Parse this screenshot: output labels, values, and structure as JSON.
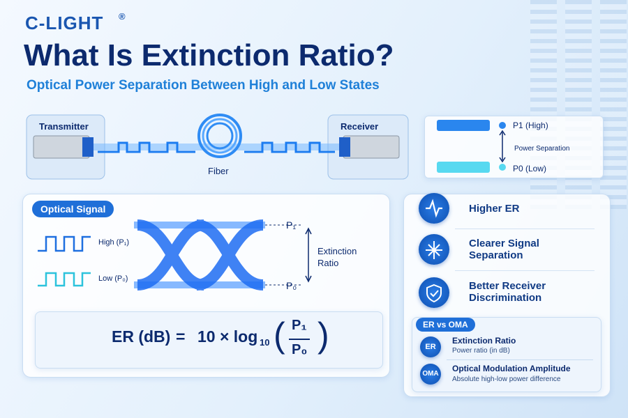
{
  "header": {
    "brand": "C-LIGHT",
    "brand_mark": "®",
    "title": "What Is Extinction Ratio?",
    "subtitle": "Optical Power Separation Between High and Low States"
  },
  "link": {
    "transmitter": "Transmitter",
    "receiver": "Receiver",
    "fiber": "Fiber"
  },
  "power_levels": {
    "high": "P1 (High)",
    "separation": "Power Separation",
    "low": "P0 (Low)"
  },
  "optical_signal": {
    "tab": "Optical Signal",
    "high_label": "High (P₁)",
    "low_label": "Low (P₀)",
    "eye_top": "P₁",
    "eye_bottom": "P₀",
    "eye_measure": "Extinction Ratio",
    "formula": {
      "lhs": "ER (dB)",
      "equals": "=",
      "coefficient": "10 × log",
      "base": "10",
      "numerator": "P₁",
      "denominator": "P₀"
    }
  },
  "benefits": [
    "Higher ER",
    "Clearer Signal Separation",
    "Better Receiver Discrimination"
  ],
  "comparison": {
    "tab": "ER vs OMA",
    "items": [
      {
        "abbr": "ER",
        "title": "Extinction Ratio",
        "description": "Power ratio (in dB)"
      },
      {
        "abbr": "OMA",
        "title": "Optical Modulation Amplitude",
        "description": "Absolute high-low power difference"
      }
    ]
  }
}
